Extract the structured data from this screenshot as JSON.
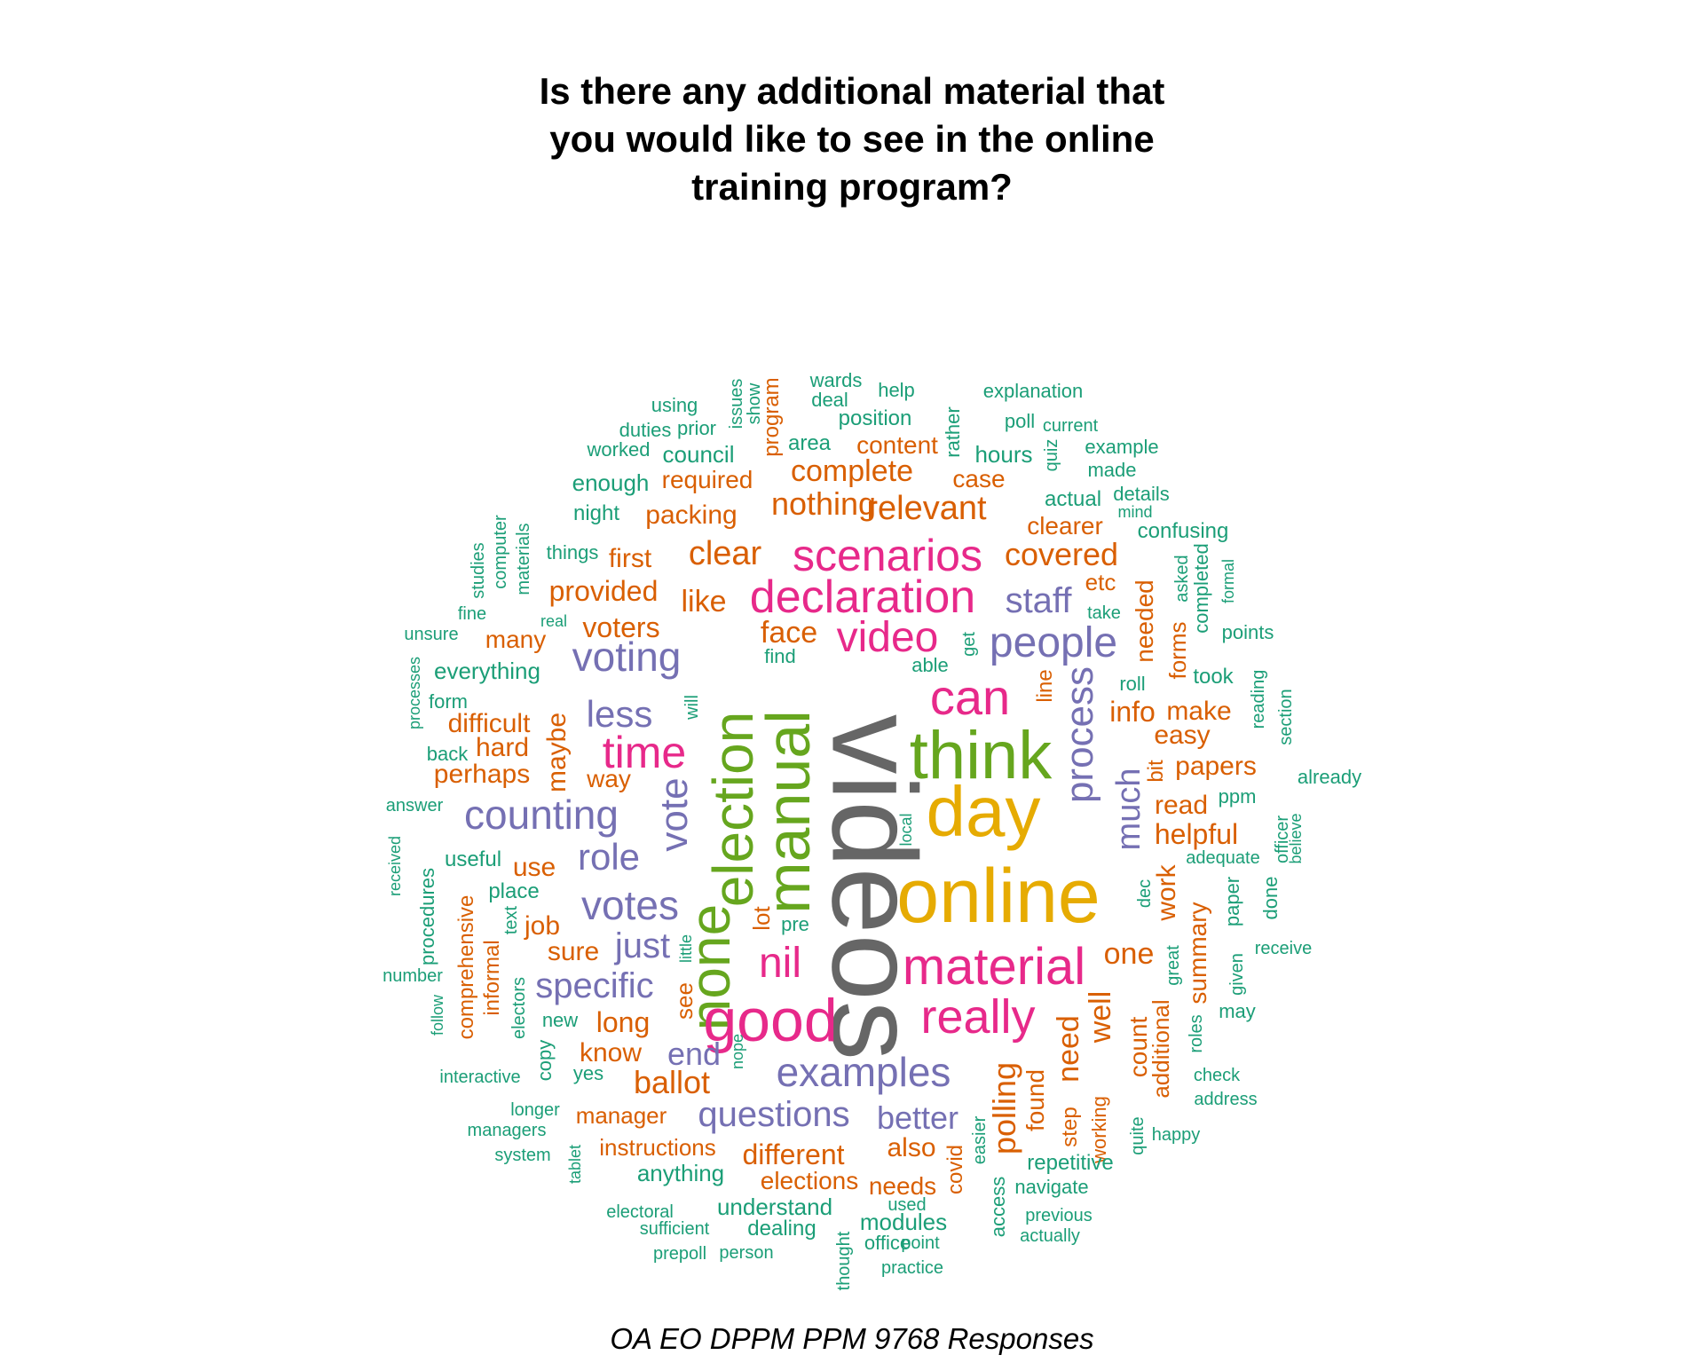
{
  "title_lines": [
    "Is there any additional material that",
    "you would like to see in the online",
    "training program?"
  ],
  "caption": "OA EO DPPM PPM 9768 Responses",
  "palette": {
    "green": "#1b9e77",
    "orange": "#d95f02",
    "purple": "#7570b3",
    "pink": "#e7298a",
    "lime": "#66a61e",
    "gold": "#e6ab02",
    "gray": "#666666"
  },
  "words": [
    {
      "t": "videos",
      "c": "gray",
      "r": 90
    },
    {
      "t": "online",
      "c": "gold"
    },
    {
      "t": "day",
      "c": "gold"
    },
    {
      "t": "think",
      "c": "lime"
    },
    {
      "t": "manual",
      "c": "lime",
      "r": -90
    },
    {
      "t": "election",
      "c": "lime",
      "r": -90
    },
    {
      "t": "none",
      "c": "lime",
      "r": -90
    },
    {
      "t": "material",
      "c": "pink"
    },
    {
      "t": "good",
      "c": "pink"
    },
    {
      "t": "declaration",
      "c": "pink"
    },
    {
      "t": "scenarios",
      "c": "pink"
    },
    {
      "t": "can",
      "c": "pink"
    },
    {
      "t": "really",
      "c": "pink"
    },
    {
      "t": "time",
      "c": "pink"
    },
    {
      "t": "video",
      "c": "pink"
    },
    {
      "t": "nil",
      "c": "pink"
    },
    {
      "t": "people",
      "c": "purple"
    },
    {
      "t": "counting",
      "c": "purple"
    },
    {
      "t": "votes",
      "c": "purple"
    },
    {
      "t": "voting",
      "c": "purple"
    },
    {
      "t": "examples",
      "c": "purple"
    },
    {
      "t": "questions",
      "c": "purple"
    },
    {
      "t": "process",
      "c": "purple",
      "r": -90
    },
    {
      "t": "vote",
      "c": "purple",
      "r": -90
    },
    {
      "t": "role",
      "c": "purple"
    },
    {
      "t": "specific",
      "c": "purple"
    },
    {
      "t": "less",
      "c": "purple"
    },
    {
      "t": "just",
      "c": "purple"
    },
    {
      "t": "staff",
      "c": "purple"
    },
    {
      "t": "much",
      "c": "purple",
      "r": -90
    },
    {
      "t": "better",
      "c": "purple"
    },
    {
      "t": "end",
      "c": "purple"
    },
    {
      "t": "relevant",
      "c": "orange"
    },
    {
      "t": "nothing",
      "c": "orange"
    },
    {
      "t": "clear",
      "c": "orange"
    },
    {
      "t": "covered",
      "c": "orange"
    },
    {
      "t": "complete",
      "c": "orange"
    },
    {
      "t": "like",
      "c": "orange"
    },
    {
      "t": "face",
      "c": "orange"
    },
    {
      "t": "provided",
      "c": "orange"
    },
    {
      "t": "voters",
      "c": "orange"
    },
    {
      "t": "packing",
      "c": "orange"
    },
    {
      "t": "required",
      "c": "orange"
    },
    {
      "t": "content",
      "c": "orange"
    },
    {
      "t": "case",
      "c": "orange"
    },
    {
      "t": "first",
      "c": "orange"
    },
    {
      "t": "many",
      "c": "orange"
    },
    {
      "t": "difficult",
      "c": "orange"
    },
    {
      "t": "hard",
      "c": "orange"
    },
    {
      "t": "perhaps",
      "c": "orange"
    },
    {
      "t": "maybe",
      "c": "orange",
      "r": -90
    },
    {
      "t": "way",
      "c": "orange"
    },
    {
      "t": "info",
      "c": "orange"
    },
    {
      "t": "make",
      "c": "orange"
    },
    {
      "t": "easy",
      "c": "orange"
    },
    {
      "t": "papers",
      "c": "orange"
    },
    {
      "t": "read",
      "c": "orange"
    },
    {
      "t": "helpful",
      "c": "orange"
    },
    {
      "t": "one",
      "c": "orange"
    },
    {
      "t": "use",
      "c": "orange"
    },
    {
      "t": "job",
      "c": "orange"
    },
    {
      "t": "sure",
      "c": "orange"
    },
    {
      "t": "long",
      "c": "orange"
    },
    {
      "t": "know",
      "c": "orange"
    },
    {
      "t": "ballot",
      "c": "orange"
    },
    {
      "t": "manager",
      "c": "orange"
    },
    {
      "t": "instructions",
      "c": "orange"
    },
    {
      "t": "different",
      "c": "orange"
    },
    {
      "t": "elections",
      "c": "orange"
    },
    {
      "t": "needs",
      "c": "orange"
    },
    {
      "t": "also",
      "c": "orange"
    },
    {
      "t": "polling",
      "c": "orange",
      "r": -90
    },
    {
      "t": "need",
      "c": "orange",
      "r": -90
    },
    {
      "t": "found",
      "c": "orange",
      "r": -90
    },
    {
      "t": "well",
      "c": "orange",
      "r": -90
    },
    {
      "t": "count",
      "c": "orange",
      "r": -90
    },
    {
      "t": "work",
      "c": "orange",
      "r": -90
    },
    {
      "t": "summary",
      "c": "orange",
      "r": -90
    },
    {
      "t": "additional",
      "c": "orange",
      "r": -90
    },
    {
      "t": "needed",
      "c": "orange",
      "r": -90
    },
    {
      "t": "forms",
      "c": "orange",
      "r": -90
    },
    {
      "t": "etc",
      "c": "orange"
    },
    {
      "t": "clearer",
      "c": "orange"
    },
    {
      "t": "line",
      "c": "orange",
      "r": -90
    },
    {
      "t": "bit",
      "c": "orange",
      "r": -90
    },
    {
      "t": "comprehensive",
      "c": "orange",
      "r": -90
    },
    {
      "t": "informal",
      "c": "orange",
      "r": -90
    },
    {
      "t": "lot",
      "c": "orange",
      "r": -90
    },
    {
      "t": "see",
      "c": "orange",
      "r": -90
    },
    {
      "t": "covid",
      "c": "orange",
      "r": -90
    },
    {
      "t": "step",
      "c": "orange",
      "r": -90
    },
    {
      "t": "working",
      "c": "orange",
      "r": -90
    },
    {
      "t": "program",
      "c": "orange",
      "r": -90
    },
    {
      "t": "using",
      "c": "green"
    },
    {
      "t": "issues",
      "c": "green",
      "r": -90
    },
    {
      "t": "show",
      "c": "green",
      "r": -90
    },
    {
      "t": "wards",
      "c": "green"
    },
    {
      "t": "deal",
      "c": "green"
    },
    {
      "t": "help",
      "c": "green"
    },
    {
      "t": "explanation",
      "c": "green"
    },
    {
      "t": "position",
      "c": "green"
    },
    {
      "t": "rather",
      "c": "green",
      "r": -90
    },
    {
      "t": "poll",
      "c": "green"
    },
    {
      "t": "current",
      "c": "green"
    },
    {
      "t": "duties",
      "c": "green"
    },
    {
      "t": "prior",
      "c": "green"
    },
    {
      "t": "worked",
      "c": "green"
    },
    {
      "t": "council",
      "c": "green"
    },
    {
      "t": "area",
      "c": "green"
    },
    {
      "t": "hours",
      "c": "green"
    },
    {
      "t": "quiz",
      "c": "green",
      "r": -90
    },
    {
      "t": "example",
      "c": "green"
    },
    {
      "t": "made",
      "c": "green"
    },
    {
      "t": "enough",
      "c": "green"
    },
    {
      "t": "actual",
      "c": "green"
    },
    {
      "t": "details",
      "c": "green"
    },
    {
      "t": "mind",
      "c": "green"
    },
    {
      "t": "night",
      "c": "green"
    },
    {
      "t": "confusing",
      "c": "green"
    },
    {
      "t": "things",
      "c": "green"
    },
    {
      "t": "studies",
      "c": "green",
      "r": -90
    },
    {
      "t": "computer",
      "c": "green",
      "r": -90
    },
    {
      "t": "materials",
      "c": "green",
      "r": -90
    },
    {
      "t": "asked",
      "c": "green",
      "r": -90
    },
    {
      "t": "completed",
      "c": "green",
      "r": -90
    },
    {
      "t": "formal",
      "c": "green",
      "r": -90
    },
    {
      "t": "fine",
      "c": "green"
    },
    {
      "t": "real",
      "c": "green"
    },
    {
      "t": "take",
      "c": "green"
    },
    {
      "t": "unsure",
      "c": "green"
    },
    {
      "t": "get",
      "c": "green",
      "r": -90
    },
    {
      "t": "points",
      "c": "green"
    },
    {
      "t": "find",
      "c": "green"
    },
    {
      "t": "able",
      "c": "green"
    },
    {
      "t": "processes",
      "c": "green",
      "r": -90
    },
    {
      "t": "everything",
      "c": "green"
    },
    {
      "t": "roll",
      "c": "green"
    },
    {
      "t": "took",
      "c": "green"
    },
    {
      "t": "reading",
      "c": "green",
      "r": -90
    },
    {
      "t": "section",
      "c": "green",
      "r": -90
    },
    {
      "t": "form",
      "c": "green"
    },
    {
      "t": "will",
      "c": "green",
      "r": -90
    },
    {
      "t": "back",
      "c": "green"
    },
    {
      "t": "already",
      "c": "green"
    },
    {
      "t": "answer",
      "c": "green"
    },
    {
      "t": "ppm",
      "c": "green"
    },
    {
      "t": "local",
      "c": "green",
      "r": -90
    },
    {
      "t": "officer",
      "c": "green",
      "r": -90
    },
    {
      "t": "believe",
      "c": "green",
      "r": -90
    },
    {
      "t": "received",
      "c": "green",
      "r": -90
    },
    {
      "t": "procedures",
      "c": "green",
      "r": -90
    },
    {
      "t": "useful",
      "c": "green"
    },
    {
      "t": "adequate",
      "c": "green"
    },
    {
      "t": "paper",
      "c": "green",
      "r": -90
    },
    {
      "t": "done",
      "c": "green",
      "r": -90
    },
    {
      "t": "place",
      "c": "green"
    },
    {
      "t": "dec",
      "c": "green",
      "r": -90
    },
    {
      "t": "text",
      "c": "green",
      "r": -90
    },
    {
      "t": "pre",
      "c": "green"
    },
    {
      "t": "great",
      "c": "green",
      "r": -90
    },
    {
      "t": "receive",
      "c": "green"
    },
    {
      "t": "number",
      "c": "green"
    },
    {
      "t": "little",
      "c": "green",
      "r": -90
    },
    {
      "t": "given",
      "c": "green",
      "r": -90
    },
    {
      "t": "follow",
      "c": "green",
      "r": -90
    },
    {
      "t": "electors",
      "c": "green",
      "r": -90
    },
    {
      "t": "may",
      "c": "green"
    },
    {
      "t": "new",
      "c": "green"
    },
    {
      "t": "copy",
      "c": "green",
      "r": -90
    },
    {
      "t": "nope",
      "c": "green",
      "r": -90
    },
    {
      "t": "roles",
      "c": "green",
      "r": -90
    },
    {
      "t": "interactive",
      "c": "green"
    },
    {
      "t": "yes",
      "c": "green"
    },
    {
      "t": "check",
      "c": "green"
    },
    {
      "t": "address",
      "c": "green"
    },
    {
      "t": "longer",
      "c": "green"
    },
    {
      "t": "managers",
      "c": "green"
    },
    {
      "t": "easier",
      "c": "green",
      "r": -90
    },
    {
      "t": "quite",
      "c": "green",
      "r": -90
    },
    {
      "t": "happy",
      "c": "green"
    },
    {
      "t": "tablet",
      "c": "green",
      "r": -90
    },
    {
      "t": "system",
      "c": "green"
    },
    {
      "t": "repetitive",
      "c": "green"
    },
    {
      "t": "anything",
      "c": "green"
    },
    {
      "t": "navigate",
      "c": "green"
    },
    {
      "t": "access",
      "c": "green",
      "r": -90
    },
    {
      "t": "used",
      "c": "green"
    },
    {
      "t": "electoral",
      "c": "green"
    },
    {
      "t": "understand",
      "c": "green"
    },
    {
      "t": "modules",
      "c": "green"
    },
    {
      "t": "previous",
      "c": "green"
    },
    {
      "t": "sufficient",
      "c": "green"
    },
    {
      "t": "dealing",
      "c": "green"
    },
    {
      "t": "actually",
      "c": "green"
    },
    {
      "t": "office",
      "c": "green"
    },
    {
      "t": "point",
      "c": "green"
    },
    {
      "t": "thought",
      "c": "green",
      "r": -90
    },
    {
      "t": "prepoll",
      "c": "green"
    },
    {
      "t": "person",
      "c": "green"
    },
    {
      "t": "practice",
      "c": "green"
    }
  ]
}
